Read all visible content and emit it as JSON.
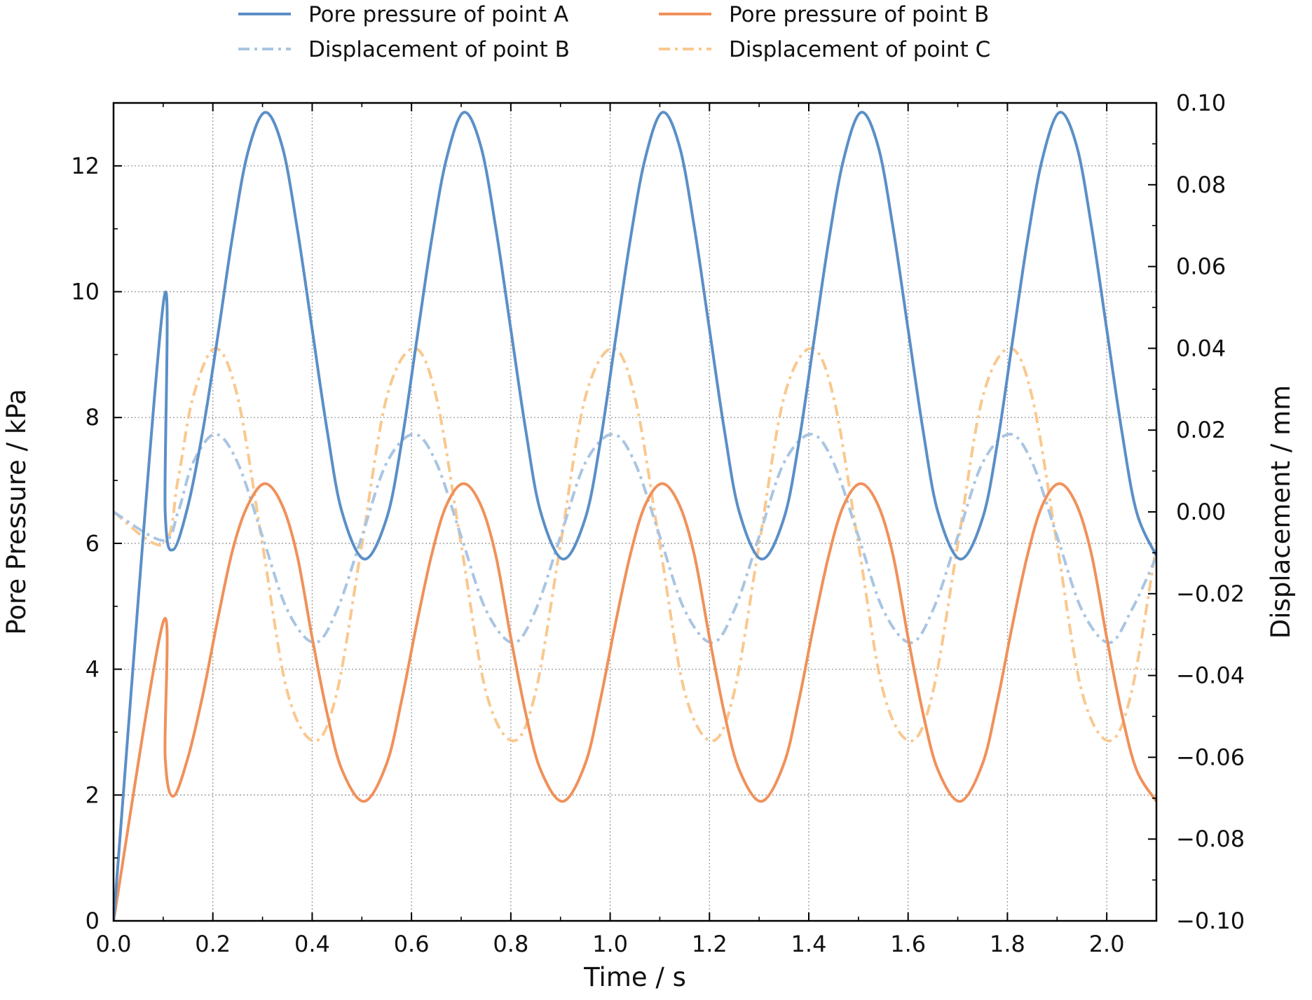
{
  "chart_data": {
    "type": "line",
    "title": "",
    "xlabel": "Time / s",
    "ylabel": "Pore Pressure / kPa",
    "y2label": "Displacement / mm",
    "xlim": [
      0,
      2.1
    ],
    "ylim": [
      0,
      13
    ],
    "y2lim": [
      -0.1,
      0.1
    ],
    "xticks": [
      "0.0",
      "0.2",
      "0.4",
      "0.6",
      "0.8",
      "1.0",
      "1.2",
      "1.4",
      "1.6",
      "1.8",
      "2.0"
    ],
    "xtick_values": [
      0,
      0.2,
      0.4,
      0.6,
      0.8,
      1.0,
      1.2,
      1.4,
      1.6,
      1.8,
      2.0
    ],
    "yticks": [
      "0",
      "2",
      "4",
      "6",
      "8",
      "10",
      "12"
    ],
    "ytick_values": [
      0,
      2,
      4,
      6,
      8,
      10,
      12
    ],
    "y2ticks": [
      "−0.10",
      "−0.08",
      "−0.06",
      "−0.04",
      "−0.02",
      "0.00",
      "0.02",
      "0.04",
      "0.06",
      "0.08",
      "0.10"
    ],
    "y2tick_values": [
      -0.1,
      -0.08,
      -0.06,
      -0.04,
      -0.02,
      0.0,
      0.02,
      0.04,
      0.06,
      0.08,
      0.1
    ],
    "grid": true,
    "legend_position": "top-center",
    "series": [
      {
        "name": "Pore pressure of point A",
        "axis": "left",
        "color": "#5b8fc7",
        "style": "solid",
        "x": [
          0,
          0.1,
          0.104,
          0.12,
          0.15,
          0.18,
          0.21,
          0.24,
          0.27,
          0.305,
          0.34,
          0.37,
          0.4,
          0.43,
          0.46,
          0.505,
          0.55,
          0.58,
          0.61,
          0.64,
          0.67,
          0.705,
          0.74,
          0.77,
          0.8,
          0.83,
          0.86,
          0.905,
          0.95,
          0.98,
          1.01,
          1.04,
          1.07,
          1.105,
          1.14,
          1.17,
          1.2,
          1.23,
          1.26,
          1.305,
          1.35,
          1.38,
          1.41,
          1.44,
          1.47,
          1.505,
          1.54,
          1.57,
          1.6,
          1.63,
          1.66,
          1.705,
          1.75,
          1.78,
          1.81,
          1.84,
          1.87,
          1.905,
          1.94,
          1.97,
          2.0,
          2.03,
          2.06,
          2.1
        ],
        "y": [
          0,
          9.8,
          6.5,
          5.9,
          6.6,
          7.8,
          9.3,
          10.9,
          12.2,
          12.85,
          12.3,
          11.0,
          9.4,
          7.8,
          6.5,
          5.75,
          6.4,
          7.6,
          9.2,
          10.8,
          12.1,
          12.85,
          12.3,
          11.0,
          9.4,
          7.8,
          6.5,
          5.75,
          6.4,
          7.6,
          9.2,
          10.8,
          12.1,
          12.85,
          12.3,
          11.0,
          9.4,
          7.8,
          6.5,
          5.75,
          6.4,
          7.6,
          9.2,
          10.8,
          12.1,
          12.85,
          12.3,
          11.0,
          9.4,
          7.8,
          6.5,
          5.75,
          6.4,
          7.6,
          9.2,
          10.8,
          12.1,
          12.85,
          12.3,
          11.0,
          9.4,
          7.8,
          6.5,
          5.8
        ]
      },
      {
        "name": "Pore pressure of point B",
        "axis": "left",
        "color": "#f0915b",
        "style": "solid",
        "x": [
          0,
          0.1,
          0.104,
          0.12,
          0.15,
          0.18,
          0.21,
          0.24,
          0.27,
          0.305,
          0.34,
          0.37,
          0.4,
          0.43,
          0.46,
          0.505,
          0.55,
          0.58,
          0.61,
          0.64,
          0.67,
          0.705,
          0.74,
          0.77,
          0.8,
          0.83,
          0.86,
          0.905,
          0.95,
          0.98,
          1.01,
          1.04,
          1.07,
          1.105,
          1.14,
          1.17,
          1.2,
          1.23,
          1.26,
          1.305,
          1.35,
          1.38,
          1.41,
          1.44,
          1.47,
          1.505,
          1.54,
          1.57,
          1.6,
          1.63,
          1.66,
          1.705,
          1.75,
          1.78,
          1.81,
          1.84,
          1.87,
          1.905,
          1.94,
          1.97,
          2.0,
          2.03,
          2.06,
          2.1
        ],
        "y": [
          0,
          4.75,
          2.6,
          1.98,
          2.6,
          3.6,
          4.8,
          5.9,
          6.6,
          6.95,
          6.6,
          5.8,
          4.5,
          3.3,
          2.4,
          1.9,
          2.5,
          3.5,
          4.7,
          5.8,
          6.6,
          6.95,
          6.6,
          5.8,
          4.5,
          3.3,
          2.4,
          1.9,
          2.5,
          3.5,
          4.7,
          5.8,
          6.6,
          6.95,
          6.6,
          5.8,
          4.5,
          3.3,
          2.4,
          1.9,
          2.5,
          3.5,
          4.7,
          5.8,
          6.6,
          6.95,
          6.6,
          5.8,
          4.5,
          3.3,
          2.4,
          1.9,
          2.5,
          3.5,
          4.7,
          5.8,
          6.6,
          6.95,
          6.6,
          5.8,
          4.5,
          3.3,
          2.4,
          1.9
        ]
      },
      {
        "name": "Displacement of point B",
        "axis": "right",
        "color": "#a9c5e2",
        "style": "dashdot",
        "x": [
          0,
          0.1,
          0.13,
          0.16,
          0.205,
          0.25,
          0.3,
          0.35,
          0.405,
          0.45,
          0.5,
          0.55,
          0.605,
          0.65,
          0.7,
          0.75,
          0.805,
          0.85,
          0.9,
          0.95,
          1.005,
          1.05,
          1.1,
          1.15,
          1.205,
          1.25,
          1.3,
          1.35,
          1.405,
          1.45,
          1.5,
          1.55,
          1.605,
          1.65,
          1.7,
          1.75,
          1.805,
          1.85,
          1.9,
          1.95,
          2.005,
          2.05,
          2.1
        ],
        "y": [
          0.0,
          -0.007,
          0.0,
          0.012,
          0.019,
          0.012,
          -0.006,
          -0.024,
          -0.032,
          -0.024,
          -0.006,
          0.012,
          0.019,
          0.012,
          -0.006,
          -0.024,
          -0.032,
          -0.024,
          -0.006,
          0.012,
          0.019,
          0.012,
          -0.006,
          -0.024,
          -0.032,
          -0.024,
          -0.006,
          0.012,
          0.019,
          0.012,
          -0.006,
          -0.024,
          -0.032,
          -0.024,
          -0.006,
          0.012,
          0.019,
          0.012,
          -0.006,
          -0.024,
          -0.032,
          -0.024,
          -0.011
        ]
      },
      {
        "name": "Displacement of point C",
        "axis": "right",
        "color": "#f9c88f",
        "style": "dashdot",
        "x": [
          0,
          0.1,
          0.13,
          0.16,
          0.205,
          0.25,
          0.3,
          0.35,
          0.405,
          0.45,
          0.5,
          0.55,
          0.605,
          0.65,
          0.7,
          0.75,
          0.805,
          0.85,
          0.9,
          0.95,
          1.005,
          1.05,
          1.1,
          1.15,
          1.205,
          1.25,
          1.3,
          1.35,
          1.405,
          1.45,
          1.5,
          1.55,
          1.605,
          1.65,
          1.7,
          1.75,
          1.805,
          1.85,
          1.9,
          1.95,
          2.005,
          2.05,
          2.1
        ],
        "y": [
          0.0,
          -0.008,
          0.008,
          0.028,
          0.04,
          0.028,
          -0.008,
          -0.044,
          -0.056,
          -0.044,
          -0.008,
          0.028,
          0.04,
          0.028,
          -0.008,
          -0.044,
          -0.056,
          -0.044,
          -0.008,
          0.028,
          0.04,
          0.028,
          -0.008,
          -0.044,
          -0.056,
          -0.044,
          -0.008,
          0.028,
          0.04,
          0.028,
          -0.008,
          -0.044,
          -0.056,
          -0.044,
          -0.008,
          0.028,
          0.04,
          0.028,
          -0.008,
          -0.044,
          -0.056,
          -0.044,
          -0.008
        ]
      }
    ],
    "legend_order": [
      0,
      2,
      1,
      3
    ]
  }
}
